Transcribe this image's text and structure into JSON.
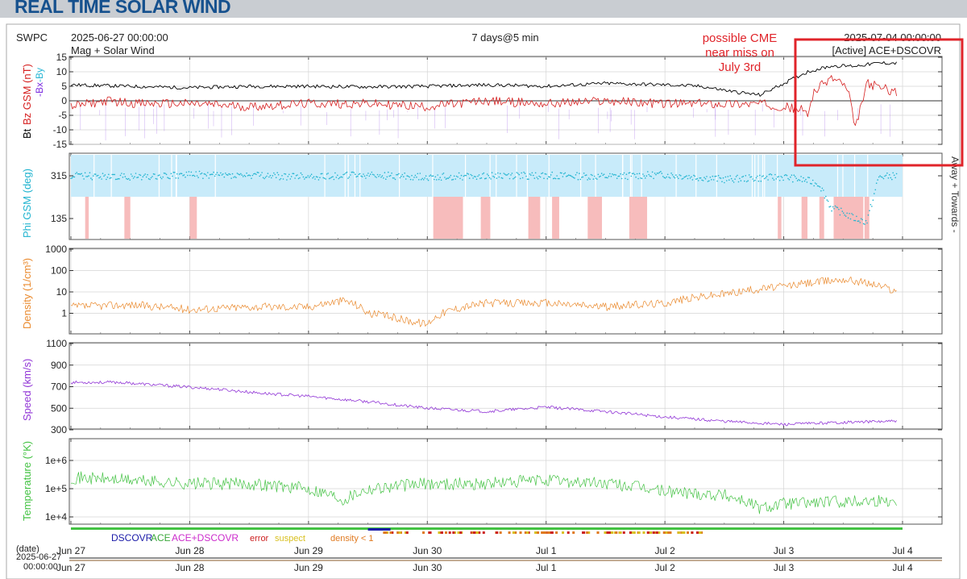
{
  "page": {
    "title": "REAL TIME SOLAR WIND"
  },
  "header": {
    "org": "SWPC",
    "start": "2025-06-27 00:00:00",
    "mode": "Mag + Solar Wind",
    "span": "7 days@5 min",
    "end": "2025-07-04 00:00:00",
    "source": "[Active] ACE+DSCOVR"
  },
  "annotation": {
    "lines": [
      "possible CME",
      "near miss on",
      "July 3rd"
    ],
    "color": "#e0242a"
  },
  "colors": {
    "bt": "#000000",
    "bz": "#d62020",
    "bx": "#7d2fe0",
    "by": "#28b6d4",
    "phi": "#1fb3cf",
    "phi_away_band": "#c8ebfa",
    "phi_toward_band": "#f6b5b5",
    "density": "#ea8a2e",
    "speed": "#9135d6",
    "temperature": "#43c243",
    "grid": "#d4d4d4",
    "title": "#16518e",
    "dscovr": "#1a1aa8",
    "ace": "#3aa83a",
    "ace_dscovr": "#cc2ccc",
    "error": "#cc2020",
    "suspect": "#d8c020",
    "density_low": "#e07a20"
  },
  "x_axis": {
    "date_label": "(date)",
    "start_date": "2025-06-27",
    "start_time": "00:00:00",
    "ticks": [
      "Jun 27",
      "Jun 28",
      "Jun 29",
      "Jun 30",
      "Jul 1",
      "Jul 2",
      "Jul 3",
      "Jul 4"
    ],
    "range_days": [
      0,
      7
    ]
  },
  "legend": {
    "dscovr": "DSCOVR",
    "ace": "ACE",
    "ace_dscovr": "ACE+DSCOVR",
    "error": "error",
    "suspect": "suspect",
    "density_low": "density < 1"
  },
  "panels": {
    "mag": {
      "label_bt": "Bt",
      "label_bz": "Bz GSM (nT)",
      "label_bx": "-Bx",
      "label_by": "-By",
      "ticks": [
        "15",
        "10",
        "5",
        "0",
        "-5",
        "-10",
        "-15"
      ]
    },
    "phi": {
      "label": "Phi GSM (deg)",
      "ticks": [
        "315",
        "135"
      ],
      "side_label": "Away + Towards -"
    },
    "density": {
      "label": "Density (1/cm³)",
      "ticks": [
        "1000",
        "100",
        "10",
        "1"
      ]
    },
    "speed": {
      "label": "Speed (km/s)",
      "ticks": [
        "1100",
        "900",
        "700",
        "500",
        "300"
      ]
    },
    "temperature": {
      "label": "Temperature (°K)",
      "ticks": [
        "1e+6",
        "1e+5",
        "1e+4"
      ]
    }
  },
  "chart_data": [
    {
      "type": "line",
      "title": "",
      "xlabel": "(date)",
      "ylabel": "Bt, Bz GSM (nT)",
      "xlim": [
        0,
        7
      ],
      "ylim": [
        -15,
        15
      ],
      "grid": true,
      "series": [
        {
          "name": "Bt",
          "x": [
            0,
            0.5,
            1,
            1.5,
            2,
            2.5,
            3,
            3.5,
            4,
            4.5,
            5,
            5.3,
            5.6,
            5.8,
            6,
            6.2,
            6.4,
            6.6,
            6.8,
            6.95
          ],
          "values": [
            5.5,
            5,
            4.5,
            5,
            5,
            4.8,
            5,
            5.5,
            5,
            6,
            5.5,
            5,
            3,
            2,
            6,
            10,
            12,
            12,
            13,
            13
          ]
        },
        {
          "name": "Bz GSM (nT)",
          "x": [
            0,
            0.3,
            0.6,
            1,
            1.5,
            2,
            2.5,
            3,
            3.5,
            4,
            4.5,
            5,
            5.5,
            5.8,
            6,
            6.15,
            6.2,
            6.25,
            6.4,
            6.5,
            6.55,
            6.6,
            6.7,
            6.95
          ],
          "values": [
            -2,
            0,
            -1,
            -1,
            -2,
            -1,
            -1,
            -2,
            0,
            -1,
            0,
            -1,
            -1,
            -1,
            -2,
            -3,
            -5,
            3,
            8,
            6,
            2,
            -10,
            6,
            3
          ]
        }
      ]
    },
    {
      "type": "scatter",
      "title": "",
      "xlabel": "(date)",
      "ylabel": "Phi GSM (deg)",
      "xlim": [
        0,
        7
      ],
      "series": [
        {
          "name": "Phi GSM (deg)",
          "x": [
            0,
            0.5,
            1,
            1.5,
            2,
            2.5,
            3,
            3.5,
            4,
            4.5,
            5,
            5.5,
            6,
            6.2,
            6.3,
            6.4,
            6.5,
            6.6,
            6.7,
            6.8,
            6.95
          ],
          "values": [
            315,
            310,
            320,
            315,
            312,
            318,
            310,
            315,
            316,
            312,
            320,
            300,
            310,
            295,
            280,
            180,
            160,
            135,
            120,
            310,
            315
          ]
        }
      ]
    },
    {
      "type": "line",
      "title": "",
      "xlabel": "(date)",
      "ylabel": "Density (1/cm³)",
      "xlim": [
        0,
        7
      ],
      "ylim": [
        0.1,
        1000
      ],
      "log_y": true,
      "grid": true,
      "series": [
        {
          "name": "Density (1/cm³)",
          "x": [
            0,
            0.5,
            1,
            1.5,
            2,
            2.3,
            2.5,
            2.8,
            3,
            3.3,
            3.5,
            4,
            4.5,
            5,
            5.5,
            6,
            6.3,
            6.5,
            6.8,
            6.95
          ],
          "values": [
            2,
            2.5,
            1.5,
            2,
            2,
            4,
            1,
            0.5,
            0.3,
            2,
            3,
            3,
            2,
            3,
            8,
            18,
            30,
            40,
            20,
            10
          ]
        }
      ]
    },
    {
      "type": "line",
      "title": "",
      "xlabel": "(date)",
      "ylabel": "Speed (km/s)",
      "xlim": [
        0,
        7
      ],
      "ylim": [
        300,
        1100
      ],
      "grid": true,
      "series": [
        {
          "name": "Speed (km/s)",
          "x": [
            0,
            0.4,
            0.8,
            1.2,
            1.6,
            2,
            2.5,
            3,
            3.5,
            4,
            4.5,
            5,
            5.5,
            6,
            6.5,
            6.95
          ],
          "values": [
            740,
            740,
            710,
            680,
            640,
            610,
            560,
            500,
            470,
            510,
            470,
            420,
            380,
            350,
            370,
            380
          ]
        }
      ]
    },
    {
      "type": "line",
      "title": "",
      "xlabel": "(date)",
      "ylabel": "Temperature (°K)",
      "xlim": [
        0,
        7
      ],
      "ylim": [
        5000,
        3000000
      ],
      "log_y": true,
      "grid": true,
      "series": [
        {
          "name": "Temperature (°K)",
          "x": [
            0,
            0.5,
            1,
            1.5,
            2,
            2.3,
            2.5,
            3,
            3.5,
            4,
            4.5,
            5,
            5.5,
            5.8,
            6,
            6.5,
            6.95
          ],
          "values": [
            250000,
            200000,
            150000,
            150000,
            100000,
            40000,
            100000,
            150000,
            150000,
            200000,
            150000,
            80000,
            60000,
            20000,
            30000,
            35000,
            40000
          ]
        }
      ]
    }
  ]
}
